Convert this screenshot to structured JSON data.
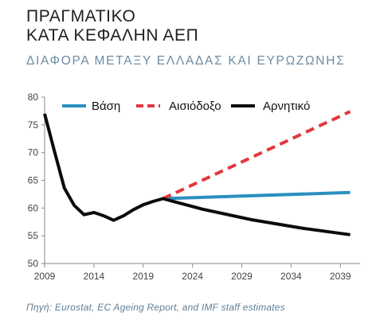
{
  "title_line1": "ΠΡΑΓΜΑΤΙΚΟ",
  "title_line2": "ΚΑΤΑ ΚΕΦΑΛΗΝ ΑΕΠ",
  "subtitle": "ΔΙΑΦΟΡΑ ΜΕΤΑΞΥ ΕΛΛΑΔΑΣ ΚΑΙ ΕΥΡΩΖΩΝΗΣ",
  "source": "Πηγή: Eurostat, EC Ageing Report, and IMF staff estimates",
  "chart_data": {
    "type": "line",
    "title": "ΠΡΑΓΜΑΤΙΚΟ ΚΑΤΑ ΚΕΦΑΛΗΝ ΑΕΠ",
    "subtitle": "ΔΙΑΦΟΡΑ ΜΕΤΑΞΥ ΕΛΛΑΔΑΣ ΚΑΙ ΕΥΡΩΖΩΝΗΣ",
    "xlabel": "",
    "ylabel": "",
    "xlim": [
      2009,
      2041
    ],
    "ylim": [
      50,
      80
    ],
    "x_ticks": [
      2009,
      2014,
      2019,
      2024,
      2029,
      2034,
      2039
    ],
    "y_ticks": [
      50,
      55,
      60,
      65,
      70,
      75,
      80
    ],
    "grid": false,
    "legend_position": "top",
    "series": [
      {
        "name": "Βάση",
        "color": "#2a8fc0",
        "dash": "solid",
        "points": [
          [
            2021,
            61.7
          ],
          [
            2040,
            62.8
          ]
        ]
      },
      {
        "name": "Αισιόδοξο",
        "color": "#e2373e",
        "dash": "dashed",
        "points": [
          [
            2021,
            61.7
          ],
          [
            2040,
            77.4
          ]
        ]
      },
      {
        "name": "Αρνητικό",
        "color": "#0b0b0b",
        "dash": "solid",
        "points": [
          [
            2009,
            77.0
          ],
          [
            2010,
            70.2
          ],
          [
            2011,
            63.6
          ],
          [
            2012,
            60.5
          ],
          [
            2013,
            58.8
          ],
          [
            2014,
            59.2
          ],
          [
            2015,
            58.6
          ],
          [
            2016,
            57.8
          ],
          [
            2017,
            58.6
          ],
          [
            2018,
            59.7
          ],
          [
            2019,
            60.6
          ],
          [
            2020,
            61.2
          ],
          [
            2021,
            61.7
          ],
          [
            2025,
            59.8
          ],
          [
            2030,
            57.9
          ],
          [
            2035,
            56.4
          ],
          [
            2040,
            55.2
          ]
        ]
      }
    ]
  }
}
